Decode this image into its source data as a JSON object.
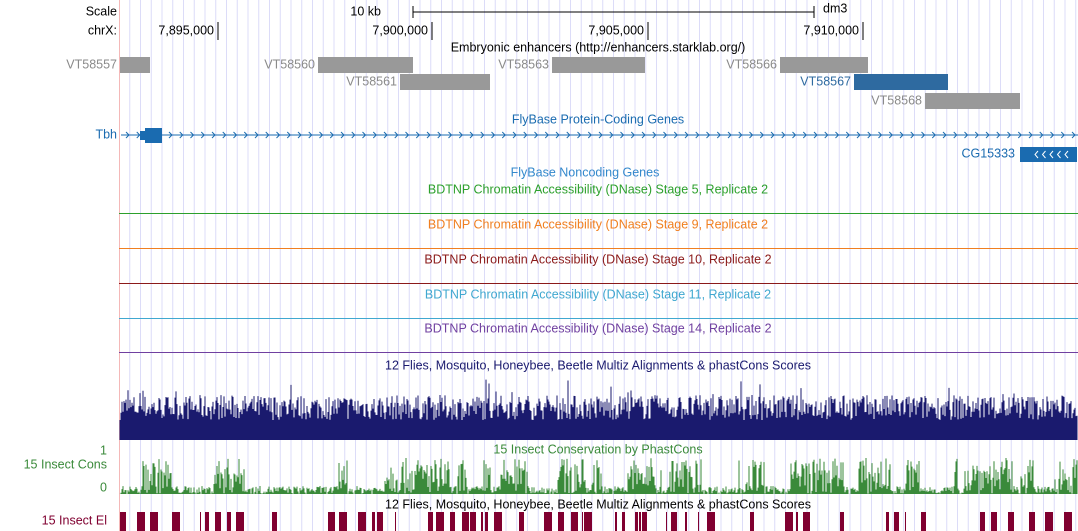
{
  "scale": {
    "label": "Scale",
    "bar": "10 kb",
    "assembly": "dm3"
  },
  "ruler": {
    "chrom": "chrX:",
    "positions": [
      "7,895,000",
      "7,900,000",
      "7,905,000",
      "7,910,000"
    ]
  },
  "enhancers": {
    "title": "Embryonic enhancers (http://enhancers.starklab.org/)",
    "items": [
      "VT58557",
      "VT58560",
      "VT58561",
      "VT58563",
      "VT58566",
      "VT58567",
      "VT58568"
    ]
  },
  "genes": {
    "title": "FlyBase Protein-Coding Genes",
    "items": [
      "Tbh",
      "CG15333"
    ]
  },
  "noncoding": {
    "title": "FlyBase Noncoding Genes"
  },
  "dnase": {
    "titles": [
      "BDTNP Chromatin Accessibility (DNase) Stage 5, Replicate 2",
      "BDTNP Chromatin Accessibility (DNase) Stage 9, Replicate 2",
      "BDTNP Chromatin Accessibility (DNase) Stage 10, Replicate 2",
      "BDTNP Chromatin Accessibility (DNase) Stage 11, Replicate 2",
      "BDTNP Chromatin Accessibility (DNase) Stage 14, Replicate 2"
    ]
  },
  "multiz": {
    "title": "12 Flies, Mosquito, Honeybee, Beetle Multiz Alignments & phastCons Scores"
  },
  "phastcons": {
    "title": "15 Insect Conservation by PhastCons",
    "label": "15 Insect Cons",
    "axis_top": "1",
    "axis_bottom": "0"
  },
  "elements": {
    "title": "12 Flies, Mosquito, Honeybee, Beetle Multiz Alignments & phastCons Scores",
    "label": "15 Insect El"
  }
}
